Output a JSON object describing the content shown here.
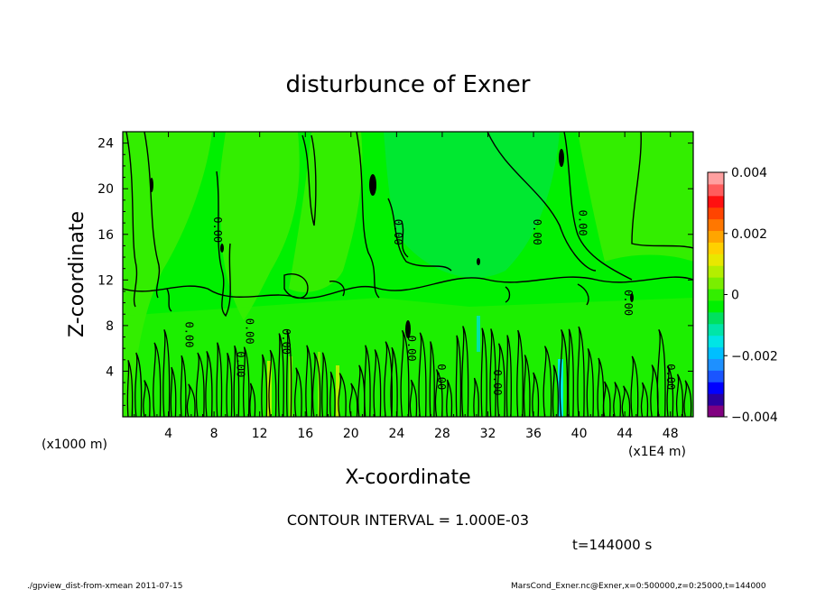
{
  "chart_data": {
    "type": "heatmap",
    "title": "disturbunce of Exner",
    "xlabel": "X-coordinate",
    "ylabel": "Z-coordinate",
    "x_unit_note": "(x1E4 m)",
    "y_unit_note": "(x1000 m)",
    "x_ticks": [
      4,
      8,
      12,
      16,
      20,
      24,
      28,
      32,
      36,
      40,
      44,
      48
    ],
    "y_ticks": [
      4,
      8,
      12,
      16,
      20,
      24
    ],
    "xlim": [
      0,
      50
    ],
    "ylim": [
      0,
      25
    ],
    "colorbar": {
      "ticks": [
        "0.004",
        "0.002",
        "0",
        "−0.002",
        "−0.004"
      ],
      "range": [
        -0.004,
        0.004
      ],
      "colors": [
        "#800080",
        "#2a00a0",
        "#0000ff",
        "#1a55ff",
        "#1e90ff",
        "#00bfff",
        "#00e5e5",
        "#00e5a8",
        "#00e060",
        "#00f000",
        "#33ee00",
        "#7aee00",
        "#b4ee00",
        "#e8e800",
        "#ffd000",
        "#ffa500",
        "#ff7700",
        "#ff4400",
        "#ff1010",
        "#ff5c5c",
        "#ffa0a0"
      ]
    },
    "contour_labels": [
      {
        "text": "0.00",
        "x": 8.0,
        "z": 16.4
      },
      {
        "text": "0.00",
        "x": 10.8,
        "z": 7.5
      },
      {
        "text": "0.00",
        "x": 10.0,
        "z": 4.6
      },
      {
        "text": "0.00",
        "x": 5.5,
        "z": 7.2
      },
      {
        "text": "0.00",
        "x": 14.0,
        "z": 6.6
      },
      {
        "text": "0.00",
        "x": 23.8,
        "z": 16.2
      },
      {
        "text": "0.00",
        "x": 25.0,
        "z": 6.0
      },
      {
        "text": "0.00",
        "x": 27.6,
        "z": 3.5
      },
      {
        "text": "0.00",
        "x": 32.5,
        "z": 3.0
      },
      {
        "text": "0.00",
        "x": 36.0,
        "z": 16.2
      },
      {
        "text": "0.00",
        "x": 40.0,
        "z": 17.0
      },
      {
        "text": "0.00",
        "x": 44.0,
        "z": 10.0
      },
      {
        "text": "0.00",
        "x": 47.7,
        "z": 3.5
      }
    ],
    "contour_interval": "CONTOUR INTERVAL = 1.000E-03",
    "time_label": "t=144000 s"
  },
  "footer": {
    "left": "./gpview_dist-from-xmean  2011-07-15",
    "right": "MarsCond_Exner.nc@Exner,x=0:500000,z=0:25000,t=144000"
  }
}
